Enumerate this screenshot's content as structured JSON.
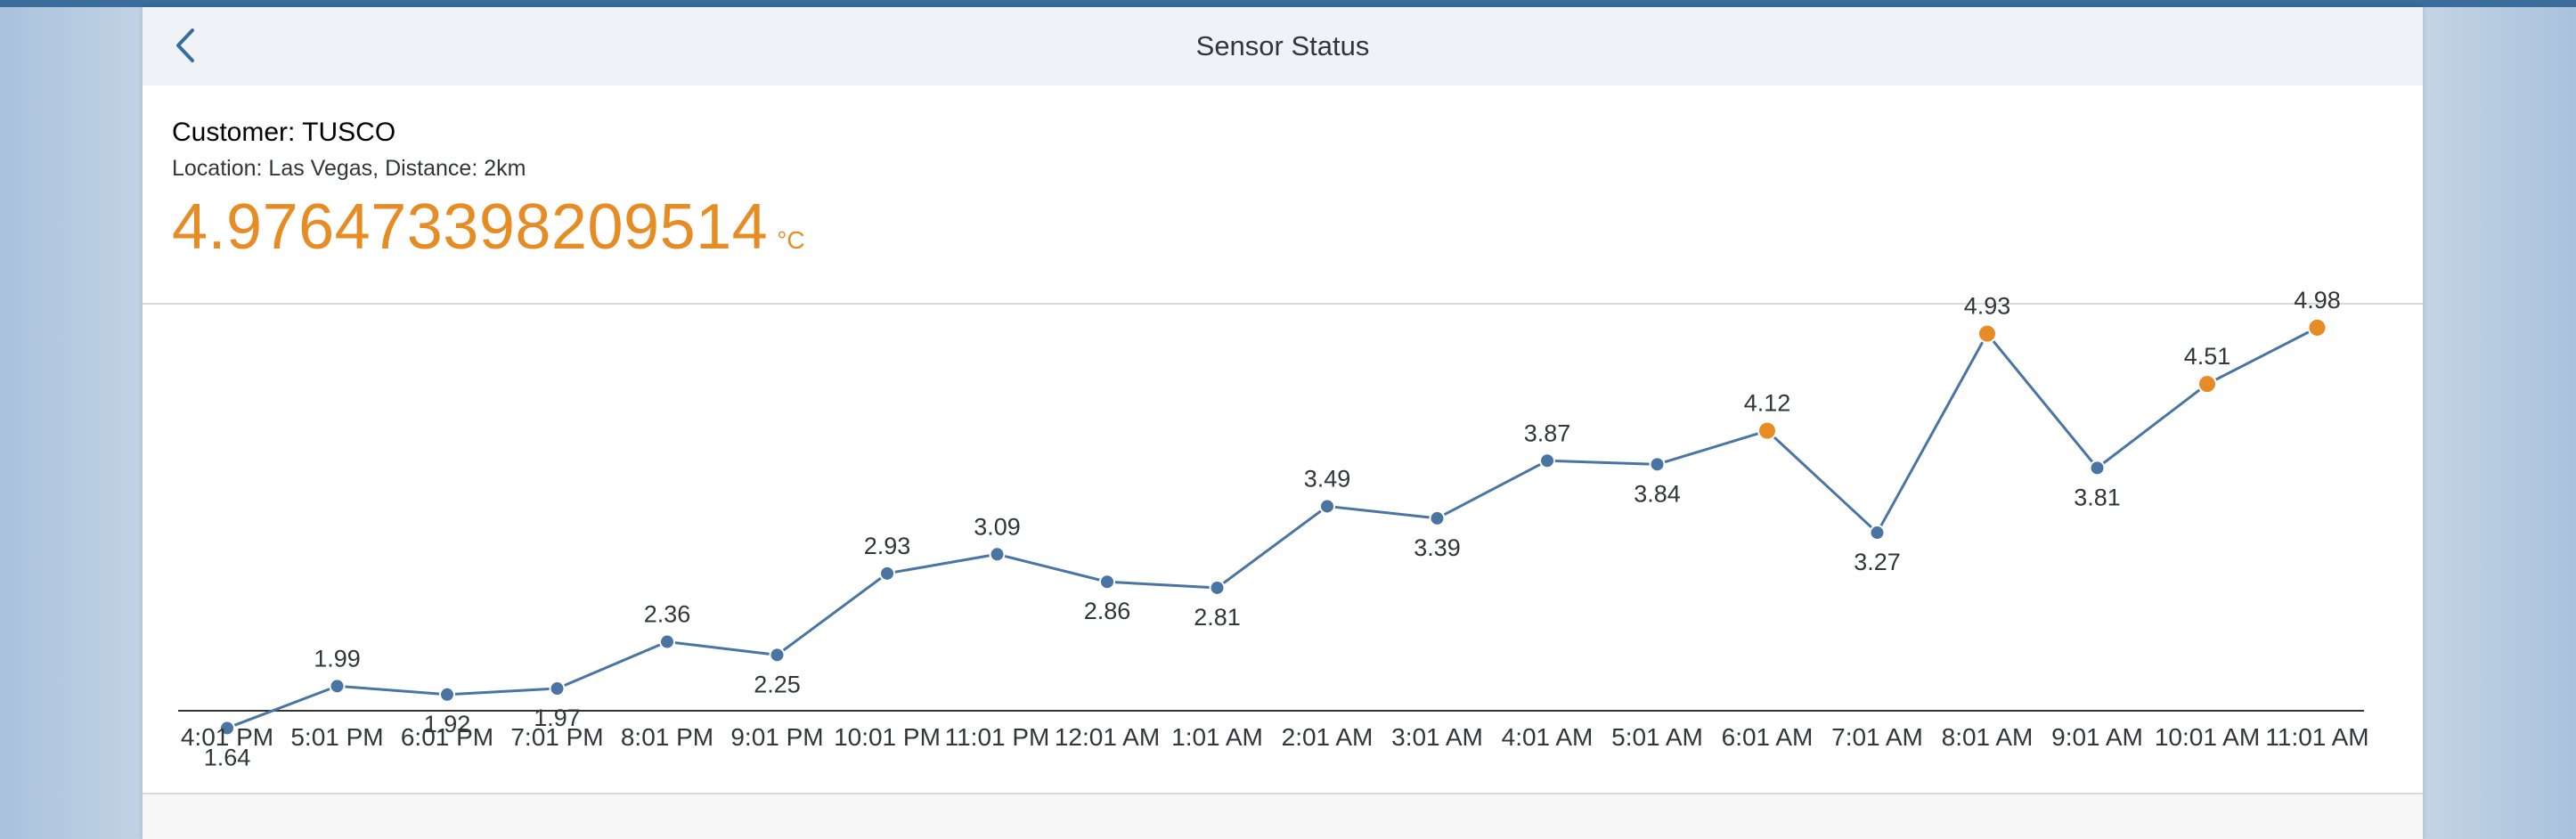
{
  "header": {
    "title": "Sensor Status",
    "back_icon": "chevron-left-icon"
  },
  "sensor": {
    "customer": "Customer: TUSCO",
    "location": "Location: Las Vegas, Distance: 2km",
    "reading_value": "4.976473398209514",
    "reading_unit": "°C",
    "reading_color": "#e78c24"
  },
  "colors": {
    "line": "#4a75a2",
    "normal_point": "#4a75a2",
    "warning_point": "#e78c24"
  },
  "chart_data": {
    "type": "line",
    "categories": [
      "4:01 PM",
      "5:01 PM",
      "6:01 PM",
      "7:01 PM",
      "8:01 PM",
      "9:01 PM",
      "10:01 PM",
      "11:01 PM",
      "12:01 AM",
      "1:01 AM",
      "2:01 AM",
      "3:01 AM",
      "4:01 AM",
      "5:01 AM",
      "6:01 AM",
      "7:01 AM",
      "8:01 AM",
      "9:01 AM",
      "10:01 AM",
      "11:01 AM"
    ],
    "values": [
      1.64,
      1.99,
      1.92,
      1.97,
      2.36,
      2.25,
      2.93,
      3.09,
      2.86,
      2.81,
      3.49,
      3.39,
      3.87,
      3.84,
      4.12,
      3.27,
      4.93,
      3.81,
      4.51,
      4.98
    ],
    "labels": [
      "1.64",
      "1.99",
      "1.92",
      "1.97",
      "2.36",
      "2.25",
      "2.93",
      "3.09",
      "2.86",
      "2.81",
      "3.49",
      "3.39",
      "3.87",
      "3.84",
      "4.12",
      "3.27",
      "4.93",
      "3.81",
      "4.51",
      "4.98"
    ],
    "point_status": [
      "normal",
      "normal",
      "normal",
      "normal",
      "normal",
      "normal",
      "normal",
      "normal",
      "normal",
      "normal",
      "normal",
      "normal",
      "normal",
      "normal",
      "warning",
      "normal",
      "warning",
      "normal",
      "warning",
      "warning"
    ],
    "label_position": [
      "below",
      "above",
      "below",
      "below",
      "above",
      "below",
      "above",
      "above",
      "below",
      "below",
      "above",
      "below",
      "above",
      "below",
      "above",
      "below",
      "above",
      "below",
      "above",
      "above"
    ],
    "legend": "none",
    "grid": false,
    "y_axis_visible": false
  }
}
